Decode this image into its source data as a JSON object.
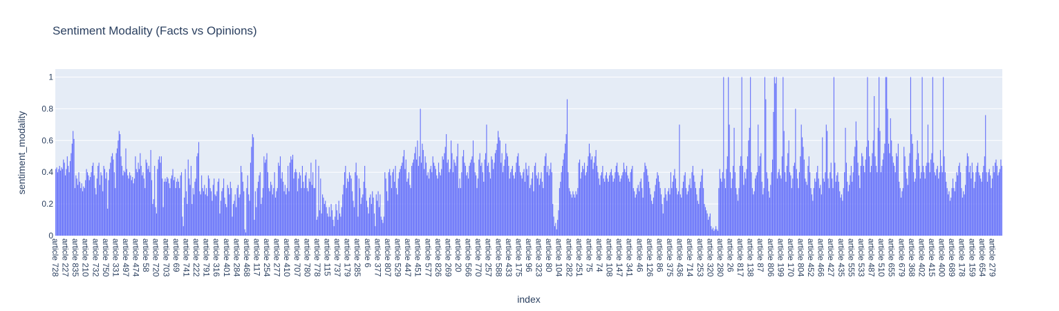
{
  "chart_data": {
    "type": "bar",
    "title": "Sentiment Modality (Facts vs Opinions)",
    "xlabel": "index",
    "ylabel": "sentiment_modality",
    "ylim": [
      0,
      1.05
    ],
    "yticks": [
      0,
      0.2,
      0.4,
      0.6,
      0.8,
      1
    ],
    "ytick_labels": [
      "0",
      "0.2",
      "0.4",
      "0.6",
      "0.8",
      "1"
    ],
    "bar_color": "#636efa",
    "plot_bg": "#e5ecf6",
    "grid": true,
    "x_tick_labels": [
      "article 728",
      "article 227",
      "article 835",
      "article 210",
      "article 732",
      "article 750",
      "article 331",
      "article 497",
      "article 474",
      "article 58",
      "article 720",
      "article 703",
      "article 69",
      "article 741",
      "article 222",
      "article 791",
      "article 316",
      "article 401",
      "article 284",
      "article 468",
      "article 117",
      "article 254",
      "article 277",
      "article 410",
      "article 707",
      "article 780",
      "article 778",
      "article 115",
      "article 737",
      "article 179",
      "article 285",
      "article 6",
      "article 377",
      "article 807",
      "article 529",
      "article 447",
      "article 451",
      "article 577",
      "article 826",
      "article 269",
      "article 20",
      "article 566",
      "article 770",
      "article 257",
      "article 588",
      "article 433",
      "article 175",
      "article 96",
      "article 323",
      "article 80",
      "article 104",
      "article 282",
      "article 251",
      "article 75",
      "article 74",
      "article 108",
      "article 147",
      "article 341",
      "article 46",
      "article 126",
      "article 86",
      "article 375",
      "article 436",
      "article 714",
      "article 253",
      "article 320",
      "article 280",
      "article 26",
      "article 817",
      "article 138",
      "article 87",
      "article 806",
      "article 199",
      "article 170",
      "article 804",
      "article 452",
      "article 466",
      "article 427",
      "article 435",
      "article 555",
      "article 533",
      "article 487",
      "article 510",
      "article 655",
      "article 679",
      "article 368",
      "article 402",
      "article 415",
      "article 400",
      "article 689",
      "article 178",
      "article 159",
      "article 654",
      "article 279"
    ],
    "values": [
      0.42,
      0.43,
      0.4,
      0.42,
      0.44,
      0.41,
      0.43,
      0.42,
      0.48,
      0.46,
      0.38,
      0.42,
      0.5,
      0.44,
      0.4,
      0.47,
      0.52,
      0.58,
      0.66,
      0.61,
      0.3,
      0.38,
      0.36,
      0.32,
      0.4,
      0.34,
      0.3,
      0.33,
      0.28,
      0.31,
      0.3,
      0.35,
      0.42,
      0.4,
      0.38,
      0.35,
      0.37,
      0.4,
      0.44,
      0.46,
      0.38,
      0.3,
      0.26,
      0.36,
      0.44,
      0.46,
      0.32,
      0.4,
      0.38,
      0.28,
      0.44,
      0.42,
      0.36,
      0.4,
      0.17,
      0.35,
      0.42,
      0.46,
      0.5,
      0.52,
      0.48,
      0.4,
      0.3,
      0.52,
      0.55,
      0.6,
      0.66,
      0.64,
      0.5,
      0.44,
      0.38,
      0.41,
      0.4,
      0.55,
      0.42,
      0.38,
      0.36,
      0.4,
      0.38,
      0.35,
      0.37,
      0.33,
      0.36,
      0.5,
      0.42,
      0.4,
      0.46,
      0.42,
      0.52,
      0.44,
      0.38,
      0.4,
      0.36,
      0.3,
      0.48,
      0.46,
      0.42,
      0.44,
      0.4,
      0.54,
      0.35,
      0.2,
      0.23,
      0.44,
      0.18,
      0.14,
      0.42,
      0.48,
      0.5,
      0.46,
      0.5,
      0.36,
      0.18,
      0.34,
      0.36,
      0.34,
      0.37,
      0.36,
      0.33,
      0.3,
      0.36,
      0.38,
      0.42,
      0.35,
      0.37,
      0.3,
      0.34,
      0.36,
      0.34,
      0.3,
      0.38,
      0.4,
      0.12,
      0.06,
      0.24,
      0.42,
      0.28,
      0.2,
      0.48,
      0.36,
      0.32,
      0.44,
      0.2,
      0.3,
      0.26,
      0.34,
      0.36,
      0.5,
      0.52,
      0.59,
      0.28,
      0.26,
      0.38,
      0.3,
      0.28,
      0.32,
      0.26,
      0.3,
      0.25,
      0.38,
      0.36,
      0.3,
      0.28,
      0.22,
      0.32,
      0.36,
      0.26,
      0.25,
      0.28,
      0.34,
      0.36,
      0.14,
      0.22,
      0.28,
      0.3,
      0.36,
      0.24,
      0.2,
      0.18,
      0.32,
      0.3,
      0.26,
      0.34,
      0.3,
      0.12,
      0.2,
      0.22,
      0.26,
      0.18,
      0.3,
      0.32,
      0.24,
      0.26,
      0.44,
      0.4,
      0.34,
      0.28,
      0.04,
      0.02,
      0.3,
      0.38,
      0.26,
      0.22,
      0.46,
      0.56,
      0.64,
      0.62,
      0.1,
      0.28,
      0.18,
      0.3,
      0.34,
      0.38,
      0.4,
      0.2,
      0.24,
      0.3,
      0.5,
      0.46,
      0.48,
      0.52,
      0.4,
      0.3,
      0.28,
      0.34,
      0.32,
      0.26,
      0.3,
      0.4,
      0.24,
      0.28,
      0.3,
      0.46,
      0.44,
      0.5,
      0.36,
      0.4,
      0.34,
      0.28,
      0.32,
      0.26,
      0.3,
      0.44,
      0.28,
      0.46,
      0.5,
      0.48,
      0.51,
      0.36,
      0.4,
      0.42,
      0.4,
      0.28,
      0.36,
      0.4,
      0.38,
      0.3,
      0.44,
      0.34,
      0.3,
      0.38,
      0.4,
      0.3,
      0.28,
      0.36,
      0.34,
      0.46,
      0.32,
      0.4,
      0.3,
      0.3,
      0.48,
      0.1,
      0.12,
      0.44,
      0.16,
      0.36,
      0.14,
      0.26,
      0.24,
      0.2,
      0.22,
      0.18,
      0.14,
      0.12,
      0.18,
      0.12,
      0.2,
      0.16,
      0.1,
      0.06,
      0.12,
      0.2,
      0.16,
      0.1,
      0.22,
      0.14,
      0.12,
      0.18,
      0.26,
      0.32,
      0.4,
      0.44,
      0.3,
      0.36,
      0.34,
      0.4,
      0.38,
      0.36,
      0.28,
      0.22,
      0.18,
      0.4,
      0.46,
      0.38,
      0.12,
      0.36,
      0.3,
      0.2,
      0.24,
      0.26,
      0.34,
      0.44,
      0.3,
      0.22,
      0.18,
      0.14,
      0.24,
      0.26,
      0.2,
      0.28,
      0.24,
      0.14,
      0.06,
      0.26,
      0.22,
      0.28,
      0.18,
      0.26,
      0.12,
      0.1,
      0.08,
      0.12,
      0.4,
      0.36,
      0.28,
      0.22,
      0.4,
      0.42,
      0.38,
      0.3,
      0.4,
      0.42,
      0.34,
      0.44,
      0.3,
      0.26,
      0.36,
      0.4,
      0.42,
      0.44,
      0.46,
      0.5,
      0.54,
      0.42,
      0.48,
      0.34,
      0.36,
      0.4,
      0.32,
      0.3,
      0.44,
      0.46,
      0.48,
      0.52,
      0.56,
      0.48,
      0.6,
      0.44,
      0.5,
      0.8,
      0.46,
      0.58,
      0.54,
      0.42,
      0.5,
      0.46,
      0.38,
      0.4,
      0.36,
      0.42,
      0.44,
      0.4,
      0.5,
      0.46,
      0.44,
      0.42,
      0.38,
      0.36,
      0.46,
      0.4,
      0.38,
      0.42,
      0.5,
      0.48,
      0.52,
      0.56,
      0.64,
      0.46,
      0.48,
      0.4,
      0.42,
      0.6,
      0.52,
      0.4,
      0.48,
      0.46,
      0.44,
      0.5,
      0.58,
      0.3,
      0.36,
      0.3,
      0.4,
      0.5,
      0.54,
      0.46,
      0.44,
      0.38,
      0.4,
      0.36,
      0.44,
      0.46,
      0.48,
      0.5,
      0.6,
      0.46,
      0.4,
      0.38,
      0.3,
      0.36,
      0.48,
      0.52,
      0.44,
      0.46,
      0.4,
      0.34,
      0.48,
      0.52,
      0.7,
      0.44,
      0.46,
      0.4,
      0.36,
      0.5,
      0.48,
      0.42,
      0.46,
      0.52,
      0.54,
      0.58,
      0.66,
      0.62,
      0.6,
      0.46,
      0.52,
      0.4,
      0.44,
      0.48,
      0.58,
      0.52,
      0.5,
      0.44,
      0.36,
      0.4,
      0.42,
      0.44,
      0.38,
      0.36,
      0.4,
      0.46,
      0.5,
      0.52,
      0.44,
      0.4,
      0.38,
      0.36,
      0.4,
      0.42,
      0.34,
      0.46,
      0.42,
      0.38,
      0.44,
      0.3,
      0.32,
      0.36,
      0.4,
      0.28,
      0.44,
      0.46,
      0.38,
      0.36,
      0.4,
      0.32,
      0.36,
      0.4,
      0.34,
      0.3,
      0.44,
      0.5,
      0.52,
      0.4,
      0.44,
      0.38,
      0.42,
      0.46,
      0.4,
      0.2,
      0.12,
      0.06,
      0.08,
      0.04,
      0.1,
      0.16,
      0.3,
      0.34,
      0.4,
      0.44,
      0.48,
      0.52,
      0.58,
      0.64,
      0.86,
      0.4,
      0.3,
      0.28,
      0.26,
      0.24,
      0.28,
      0.26,
      0.24,
      0.28,
      0.26,
      0.3,
      0.46,
      0.48,
      0.36,
      0.4,
      0.44,
      0.42,
      0.46,
      0.38,
      0.4,
      0.44,
      0.5,
      0.58,
      0.52,
      0.48,
      0.5,
      0.42,
      0.46,
      0.5,
      0.54,
      0.44,
      0.4,
      0.36,
      0.32,
      0.38,
      0.4,
      0.44,
      0.36,
      0.34,
      0.38,
      0.4,
      0.36,
      0.34,
      0.38,
      0.4,
      0.42,
      0.38,
      0.34,
      0.36,
      0.4,
      0.44,
      0.46,
      0.4,
      0.38,
      0.34,
      0.36,
      0.38,
      0.4,
      0.46,
      0.42,
      0.4,
      0.44,
      0.38,
      0.36,
      0.34,
      0.4,
      0.42,
      0.44,
      0.3,
      0.28,
      0.24,
      0.26,
      0.3,
      0.32,
      0.28,
      0.34,
      0.36,
      0.3,
      0.24,
      0.4,
      0.46,
      0.44,
      0.42,
      0.38,
      0.34,
      0.3,
      0.26,
      0.22,
      0.2,
      0.24,
      0.28,
      0.32,
      0.36,
      0.4,
      0.38,
      0.34,
      0.3,
      0.26,
      0.2,
      0.14,
      0.24,
      0.3,
      0.26,
      0.22,
      0.28,
      0.3,
      0.26,
      0.4,
      0.3,
      0.34,
      0.38,
      0.42,
      0.36,
      0.3,
      0.26,
      0.28,
      0.7,
      0.26,
      0.24,
      0.3,
      0.34,
      0.38,
      0.4,
      0.3,
      0.26,
      0.28,
      0.32,
      0.36,
      0.3,
      0.4,
      0.44,
      0.38,
      0.34,
      0.3,
      0.26,
      0.22,
      0.2,
      0.3,
      0.34,
      0.38,
      0.42,
      0.3,
      0.2,
      0.18,
      0.16,
      0.14,
      0.1,
      0.12,
      0.14,
      0.06,
      0.04,
      0.05,
      0.03,
      0.04,
      0.06,
      0.04,
      0.03,
      0.3,
      0.42,
      0.36,
      0.34,
      0.4,
      1.0,
      0.36,
      0.3,
      0.42,
      0.5,
      1.0,
      0.7,
      0.4,
      0.3,
      0.36,
      0.44,
      0.68,
      0.4,
      0.3,
      0.26,
      0.22,
      0.3,
      0.44,
      0.5,
      1.0,
      0.44,
      0.32,
      0.4,
      0.36,
      0.42,
      0.5,
      0.6,
      0.68,
      1.0,
      0.4,
      0.3,
      0.26,
      0.28,
      0.36,
      0.38,
      0.4,
      0.7,
      0.44,
      0.5,
      0.52,
      0.34,
      0.26,
      0.3,
      1.0,
      0.86,
      0.4,
      0.36,
      0.28,
      0.24,
      0.32,
      0.4,
      0.48,
      0.78,
      1.0,
      0.96,
      1.0,
      0.36,
      0.4,
      0.42,
      0.38,
      0.36,
      0.5,
      1.0,
      0.66,
      0.4,
      0.34,
      0.44,
      0.52,
      0.6,
      0.4,
      0.38,
      0.3,
      0.36,
      0.44,
      0.46,
      0.8,
      0.42,
      0.36,
      0.3,
      0.4,
      0.5,
      0.7,
      0.62,
      0.56,
      0.48,
      0.36,
      0.34,
      0.32,
      0.44,
      0.5,
      0.4,
      0.3,
      0.26,
      0.22,
      0.3,
      0.36,
      0.34,
      0.4,
      0.44,
      0.36,
      0.3,
      0.32,
      0.26,
      0.62,
      0.36,
      0.34,
      0.4,
      0.7,
      0.66,
      0.36,
      0.3,
      0.4,
      0.46,
      0.36,
      0.3,
      1.0,
      0.46,
      0.34,
      0.38,
      0.4,
      0.34,
      0.28,
      0.24,
      0.26,
      0.22,
      0.3,
      0.4,
      0.68,
      0.46,
      0.34,
      0.28,
      0.32,
      0.38,
      0.44,
      0.34,
      0.4,
      0.5,
      0.56,
      0.72,
      0.6,
      0.46,
      0.38,
      0.3,
      0.44,
      0.52,
      0.5,
      0.44,
      0.4,
      0.48,
      0.56,
      1.0,
      0.6,
      0.5,
      0.4,
      0.44,
      0.52,
      0.6,
      0.88,
      0.5,
      0.44,
      0.4,
      0.68,
      1.0,
      0.66,
      0.4,
      0.44,
      0.48,
      0.52,
      0.58,
      1.0,
      1.0,
      0.8,
      0.58,
      0.52,
      0.74,
      0.6,
      0.5,
      0.46,
      0.44,
      0.4,
      0.52,
      0.5,
      0.58,
      0.34,
      0.3,
      0.24,
      0.28,
      0.3,
      0.56,
      0.5,
      0.4,
      0.36,
      0.32,
      0.44,
      0.52,
      1.0,
      0.64,
      0.58,
      0.4,
      0.34,
      0.36,
      0.48,
      0.6,
      0.52,
      0.44,
      0.36,
      0.4,
      1.0,
      0.44,
      0.4,
      0.36,
      0.44,
      0.46,
      0.7,
      0.46,
      0.4,
      0.48,
      0.52,
      1.0,
      0.46,
      0.4,
      0.38,
      0.42,
      0.44,
      0.36,
      0.4,
      0.54,
      0.44,
      0.4,
      1.0,
      0.5,
      0.4,
      0.34,
      0.3,
      0.26,
      0.28,
      0.22,
      0.24,
      0.3,
      0.36,
      0.3,
      0.28,
      0.34,
      0.4,
      0.38,
      0.44,
      0.46,
      0.4,
      0.3,
      0.24,
      0.28,
      0.26,
      0.32,
      0.44,
      0.52,
      0.5,
      0.4,
      0.44,
      0.36,
      0.46,
      0.4,
      0.3,
      0.34,
      0.4,
      0.44,
      0.46,
      0.4,
      0.38,
      0.36,
      0.34,
      0.4,
      0.44,
      0.5,
      0.76,
      0.4,
      0.34,
      0.4,
      0.42,
      0.38,
      0.3,
      0.36,
      0.44,
      0.4,
      0.46,
      0.48,
      0.44,
      0.38,
      0.4,
      0.42,
      0.48,
      0.44
    ]
  }
}
